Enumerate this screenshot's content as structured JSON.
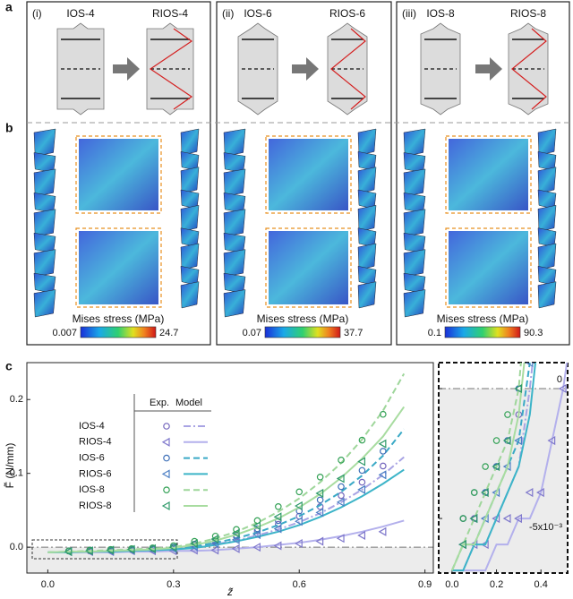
{
  "panel_labels": [
    "a",
    "b",
    "c"
  ],
  "panels": [
    {
      "index": "(i)",
      "left": "IOS-4",
      "right": "RIOS-4",
      "colorbar": {
        "label": "Mises stress (MPa)",
        "min": "0.007",
        "max": "24.7"
      }
    },
    {
      "index": "(ii)",
      "left": "IOS-6",
      "right": "RIOS-6",
      "colorbar": {
        "label": "Mises stress (MPa)",
        "min": "0.07",
        "max": "37.7"
      }
    },
    {
      "index": "(iii)",
      "left": "IOS-8",
      "right": "RIOS-8",
      "colorbar": {
        "label": "Mises stress (MPa)",
        "min": "0.1",
        "max": "90.3"
      }
    }
  ],
  "chart_data": {
    "type": "line",
    "xlabel": "z̃",
    "ylabel": "F̃ (N/mm)",
    "legend_headers": [
      "Exp.",
      "Model"
    ],
    "xlim": [
      -0.05,
      0.92
    ],
    "ylim": [
      -0.035,
      0.25
    ],
    "xticks": [
      {
        "value": 0,
        "label": "0.0"
      },
      0.3,
      0.6,
      0.9
    ],
    "yticks": [
      {
        "value": 0,
        "label": "0.0"
      },
      0.1,
      0.2
    ],
    "x": [
      0.05,
      0.1,
      0.15,
      0.2,
      0.25,
      0.3,
      0.35,
      0.4,
      0.45,
      0.5,
      0.55,
      0.6,
      0.65,
      0.7,
      0.75,
      0.8
    ],
    "model_x": [
      0,
      0.05,
      0.1,
      0.15,
      0.2,
      0.25,
      0.3,
      0.35,
      0.4,
      0.45,
      0.5,
      0.55,
      0.6,
      0.65,
      0.7,
      0.75,
      0.8,
      0.85
    ],
    "series": [
      {
        "name": "IOS-4",
        "color": "#7466bd",
        "marker": "circle",
        "model_color": "#a9a4e4",
        "model_dash": "dashdot",
        "values": [
          -0.005,
          -0.005,
          -0.004,
          -0.003,
          -0.002,
          -0.001,
          0.003,
          0.008,
          0.014,
          0.022,
          0.031,
          0.042,
          0.055,
          0.07,
          0.088,
          0.11
        ],
        "model_values": [
          -0.007,
          -0.007,
          -0.006,
          -0.006,
          -0.005,
          -0.004,
          -0.003,
          0.0,
          0.004,
          0.009,
          0.016,
          0.024,
          0.034,
          0.046,
          0.061,
          0.078,
          0.098,
          0.122
        ]
      },
      {
        "name": "RIOS-4",
        "color": "#7f78cc",
        "marker": "triangle",
        "model_color": "#b3b0ec",
        "model_dash": "solid",
        "values": [
          -0.006,
          -0.006,
          -0.006,
          -0.005,
          -0.005,
          -0.005,
          -0.004,
          -0.004,
          -0.002,
          0.0,
          0.002,
          0.005,
          0.008,
          0.012,
          0.016,
          0.021
        ],
        "model_values": [
          -0.007,
          -0.007,
          -0.007,
          -0.007,
          -0.006,
          -0.006,
          -0.005,
          -0.005,
          -0.004,
          -0.002,
          0.0,
          0.003,
          0.006,
          0.01,
          0.015,
          0.021,
          0.028,
          0.036
        ]
      },
      {
        "name": "IOS-6",
        "color": "#3d6fb8",
        "marker": "circle",
        "model_color": "#3aa9c6",
        "model_dash": "dash",
        "values": [
          -0.005,
          -0.004,
          -0.004,
          -0.003,
          -0.002,
          0.0,
          0.004,
          0.009,
          0.016,
          0.025,
          0.036,
          0.049,
          0.064,
          0.082,
          0.104,
          0.13
        ],
        "model_values": [
          -0.007,
          -0.006,
          -0.006,
          -0.005,
          -0.004,
          -0.003,
          -0.002,
          0.001,
          0.006,
          0.012,
          0.02,
          0.03,
          0.042,
          0.057,
          0.075,
          0.097,
          0.124,
          0.16
        ]
      },
      {
        "name": "RIOS-6",
        "color": "#4a7ec4",
        "marker": "triangle",
        "model_color": "#3cb4c8",
        "model_dash": "solid",
        "values": [
          -0.006,
          -0.005,
          -0.005,
          -0.004,
          -0.003,
          -0.002,
          0.001,
          0.005,
          0.01,
          0.017,
          0.025,
          0.035,
          0.047,
          0.061,
          0.078,
          0.098
        ],
        "model_values": [
          -0.007,
          -0.007,
          -0.006,
          -0.006,
          -0.005,
          -0.004,
          -0.003,
          -0.001,
          0.003,
          0.008,
          0.014,
          0.021,
          0.03,
          0.041,
          0.054,
          0.069,
          0.086,
          0.105
        ]
      },
      {
        "name": "IOS-8",
        "color": "#35a257",
        "marker": "circle",
        "model_color": "#9ed69a",
        "model_dash": "dash",
        "values": [
          -0.005,
          -0.004,
          -0.003,
          -0.002,
          -0.001,
          0.002,
          0.008,
          0.015,
          0.024,
          0.036,
          0.055,
          0.075,
          0.095,
          0.118,
          0.145,
          0.18
        ],
        "model_values": [
          -0.007,
          -0.006,
          -0.005,
          -0.004,
          -0.003,
          -0.002,
          0.0,
          0.005,
          0.012,
          0.021,
          0.033,
          0.048,
          0.066,
          0.088,
          0.114,
          0.146,
          0.185,
          0.235
        ]
      },
      {
        "name": "RIOS-8",
        "color": "#2f9a6a",
        "marker": "triangle",
        "model_color": "#a8dca0",
        "model_dash": "solid",
        "values": [
          -0.006,
          -0.005,
          -0.004,
          -0.003,
          -0.002,
          0.0,
          0.005,
          0.011,
          0.019,
          0.029,
          0.041,
          0.056,
          0.073,
          0.093,
          0.116,
          0.14
        ],
        "model_values": [
          -0.007,
          -0.006,
          -0.006,
          -0.005,
          -0.004,
          -0.003,
          -0.001,
          0.003,
          0.009,
          0.017,
          0.027,
          0.039,
          0.054,
          0.072,
          0.094,
          0.12,
          0.15,
          0.19
        ]
      }
    ],
    "inset": {
      "xlim": [
        -0.06,
        0.52
      ],
      "ylim": [
        -0.0071,
        0.001
      ],
      "xticks": [
        {
          "value": 0,
          "label": "0.0"
        },
        0.2,
        0.4
      ],
      "yticks": [
        0,
        {
          "value": -0.005,
          "label": "-5x10⁻³"
        }
      ]
    }
  }
}
